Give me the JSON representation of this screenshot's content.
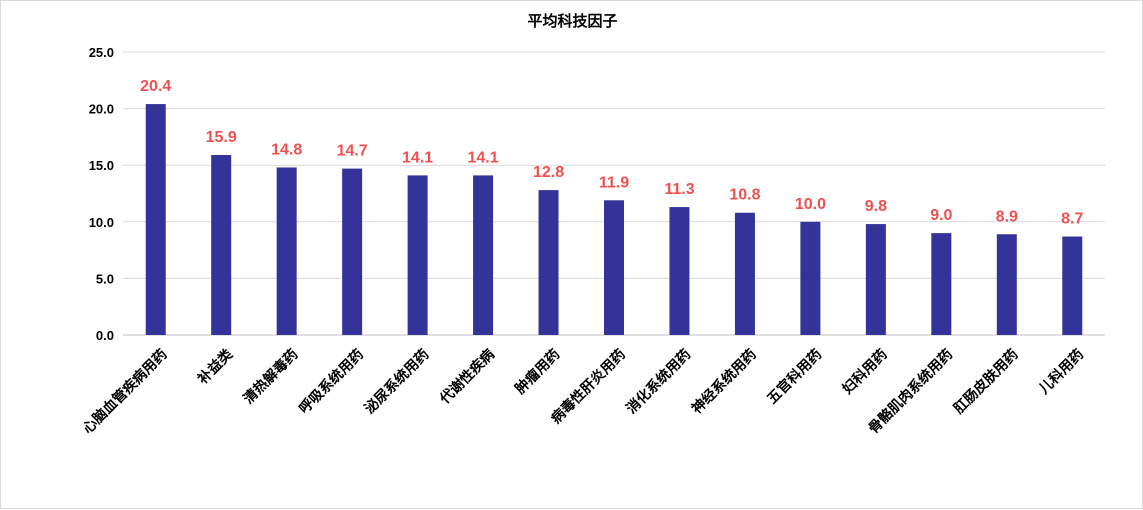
{
  "chart_data": {
    "type": "bar",
    "title": "平均科技因子",
    "xlabel": "",
    "ylabel": "",
    "ylim": [
      0,
      25
    ],
    "yticks": [
      "0.0",
      "5.0",
      "10.0",
      "15.0",
      "20.0",
      "25.0"
    ],
    "grid": true,
    "legend": "none",
    "categories": [
      "心脑血管疾病用药",
      "补益类",
      "清热解毒药",
      "呼吸系统用药",
      "泌尿系统用药",
      "代谢性疾病",
      "肿瘤用药",
      "病毒性肝炎用药",
      "消化系统用药",
      "神经系统用药",
      "五官科用药",
      "妇科用药",
      "骨骼肌肉系统用药",
      "肛肠皮肤用药",
      "儿科用药"
    ],
    "values": [
      20.4,
      15.9,
      14.8,
      14.7,
      14.1,
      14.1,
      12.8,
      11.9,
      11.3,
      10.8,
      10.0,
      9.8,
      9.0,
      8.9,
      8.7
    ],
    "data_labels": [
      "20.4",
      "15.9",
      "14.8",
      "14.7",
      "14.1",
      "14.1",
      "12.8",
      "11.9",
      "11.3",
      "10.8",
      "10.0",
      "9.8",
      "9.0",
      "8.9",
      "8.7"
    ],
    "colors": {
      "bar": "#333399",
      "data_label": "#f05050",
      "grid": "#d9d9d9",
      "axis": "#bfbfbf"
    }
  }
}
